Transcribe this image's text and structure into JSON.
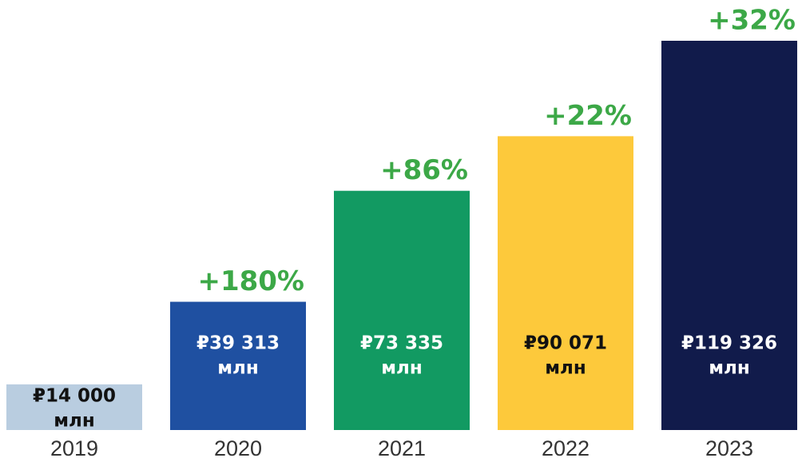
{
  "chart_data": {
    "type": "bar",
    "categories": [
      "2019",
      "2020",
      "2021",
      "2022",
      "2023"
    ],
    "values": [
      14000,
      39313,
      73335,
      90071,
      119326
    ],
    "value_labels": [
      "₽14 000",
      "₽39 313",
      "₽73 335",
      "₽90 071",
      "₽119 326"
    ],
    "unit": "млн",
    "colors": [
      "#b9cde0",
      "#1f50a1",
      "#129a62",
      "#fdc93b",
      "#111b4b"
    ],
    "annotations": [
      "+180%",
      "+86%",
      "+22%",
      "+32%"
    ],
    "annotation_color": "#3ca847"
  }
}
